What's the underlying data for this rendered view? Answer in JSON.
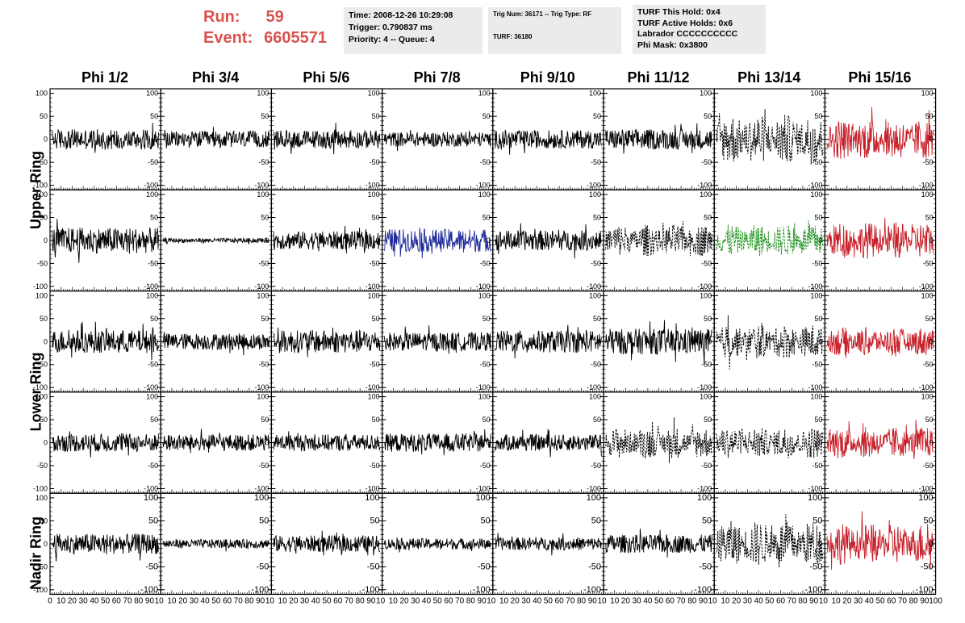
{
  "header": {
    "run_label": "Run:",
    "run_value": "59",
    "event_label": "Event:",
    "event_value": "6605571"
  },
  "info_time": {
    "time": "Time: 2008-12-26 10:29:08",
    "trigger": "Trigger: 0.790837 ms",
    "priority": "Priority: 4 -- Queue: 4"
  },
  "info_trig": {
    "trig": "Trig Num: 36171 -- Trig Type: RF",
    "turf": "TURF: 36180"
  },
  "info_turf": {
    "hold": "TURF This Hold: 0x4",
    "active": "TURF Active Holds: 0x6",
    "labrador": "Labrador CCCCCCCCCC",
    "mask": "Phi Mask: 0x3800"
  },
  "columns": [
    "Phi 1/2",
    "Phi 3/4",
    "Phi 5/6",
    "Phi 7/8",
    "Phi 9/10",
    "Phi 11/12",
    "Phi 13/14",
    "Phi 15/16"
  ],
  "row_labels": [
    "Upper Ring",
    "Lower Ring",
    "Nadir Ring"
  ],
  "colors": {
    "black": "#000000",
    "red": "#c8202a",
    "blue": "#1f2a99",
    "green": "#1a8f1a",
    "accent": "#d9534f"
  },
  "chart_data": {
    "type": "line",
    "xlim": [
      0,
      100
    ],
    "ylim": [
      -110,
      110
    ],
    "yticks": [
      100,
      50,
      0,
      -50,
      -100
    ],
    "xticks": [
      0,
      10,
      20,
      30,
      40,
      50,
      60,
      70,
      80,
      90,
      100
    ],
    "xtick_labels_col0": "0 10 20 30 40 50 60 70 80 90 10",
    "xtick_labels_mid": "10 20 30 40 50 60 70 80 90 10",
    "xtick_labels_last": "10 20 30 40 50 60 70 80 90 100",
    "panels": [
      {
        "row": 0,
        "col": 0,
        "color": "black",
        "style": "solid",
        "amp": 22
      },
      {
        "row": 0,
        "col": 1,
        "color": "black",
        "style": "solid",
        "amp": 18
      },
      {
        "row": 0,
        "col": 2,
        "color": "black",
        "style": "solid",
        "amp": 20
      },
      {
        "row": 0,
        "col": 3,
        "color": "black",
        "style": "solid",
        "amp": 16
      },
      {
        "row": 0,
        "col": 4,
        "color": "black",
        "style": "solid",
        "amp": 20
      },
      {
        "row": 0,
        "col": 5,
        "color": "black",
        "style": "solid",
        "amp": 22
      },
      {
        "row": 0,
        "col": 6,
        "color": "black",
        "style": "dashed",
        "amp": 55
      },
      {
        "row": 0,
        "col": 7,
        "color": "red",
        "style": "solid",
        "amp": 45
      },
      {
        "row": 1,
        "col": 0,
        "color": "black",
        "style": "solid",
        "amp": 28
      },
      {
        "row": 1,
        "col": 1,
        "color": "black",
        "style": "solid",
        "amp": 5
      },
      {
        "row": 1,
        "col": 2,
        "color": "black",
        "style": "solid",
        "amp": 20
      },
      {
        "row": 1,
        "col": 3,
        "color": "blue",
        "style": "solid",
        "amp": 25
      },
      {
        "row": 1,
        "col": 4,
        "color": "black",
        "style": "solid",
        "amp": 22
      },
      {
        "row": 1,
        "col": 5,
        "color": "black",
        "style": "dashed",
        "amp": 35
      },
      {
        "row": 1,
        "col": 6,
        "color": "green",
        "style": "dashed",
        "amp": 35
      },
      {
        "row": 1,
        "col": 7,
        "color": "red",
        "style": "solid",
        "amp": 40
      },
      {
        "row": 2,
        "col": 0,
        "color": "black",
        "style": "solid",
        "amp": 25
      },
      {
        "row": 2,
        "col": 1,
        "color": "black",
        "style": "solid",
        "amp": 18
      },
      {
        "row": 2,
        "col": 2,
        "color": "black",
        "style": "solid",
        "amp": 25
      },
      {
        "row": 2,
        "col": 3,
        "color": "black",
        "style": "solid",
        "amp": 20
      },
      {
        "row": 2,
        "col": 4,
        "color": "black",
        "style": "solid",
        "amp": 24
      },
      {
        "row": 2,
        "col": 5,
        "color": "black",
        "style": "solid",
        "amp": 28
      },
      {
        "row": 2,
        "col": 6,
        "color": "black",
        "style": "dashed",
        "amp": 38
      },
      {
        "row": 2,
        "col": 7,
        "color": "red",
        "style": "solid",
        "amp": 32
      },
      {
        "row": 3,
        "col": 0,
        "color": "black",
        "style": "solid",
        "amp": 20
      },
      {
        "row": 3,
        "col": 1,
        "color": "black",
        "style": "solid",
        "amp": 18
      },
      {
        "row": 3,
        "col": 2,
        "color": "black",
        "style": "solid",
        "amp": 18
      },
      {
        "row": 3,
        "col": 3,
        "color": "black",
        "style": "solid",
        "amp": 20
      },
      {
        "row": 3,
        "col": 4,
        "color": "black",
        "style": "solid",
        "amp": 18
      },
      {
        "row": 3,
        "col": 5,
        "color": "black",
        "style": "dashed",
        "amp": 35
      },
      {
        "row": 3,
        "col": 6,
        "color": "black",
        "style": "dashed",
        "amp": 35
      },
      {
        "row": 3,
        "col": 7,
        "color": "red",
        "style": "solid",
        "amp": 35
      },
      {
        "row": 4,
        "col": 0,
        "color": "black",
        "style": "solid",
        "amp": 22
      },
      {
        "row": 4,
        "col": 1,
        "color": "black",
        "style": "solid",
        "amp": 10
      },
      {
        "row": 4,
        "col": 2,
        "color": "black",
        "style": "solid",
        "amp": 18
      },
      {
        "row": 4,
        "col": 3,
        "color": "black",
        "style": "solid",
        "amp": 12
      },
      {
        "row": 4,
        "col": 4,
        "color": "black",
        "style": "solid",
        "amp": 14
      },
      {
        "row": 4,
        "col": 5,
        "color": "black",
        "style": "solid",
        "amp": 20
      },
      {
        "row": 4,
        "col": 6,
        "color": "black",
        "style": "dashed",
        "amp": 50
      },
      {
        "row": 4,
        "col": 7,
        "color": "red",
        "style": "solid",
        "amp": 45
      }
    ]
  }
}
